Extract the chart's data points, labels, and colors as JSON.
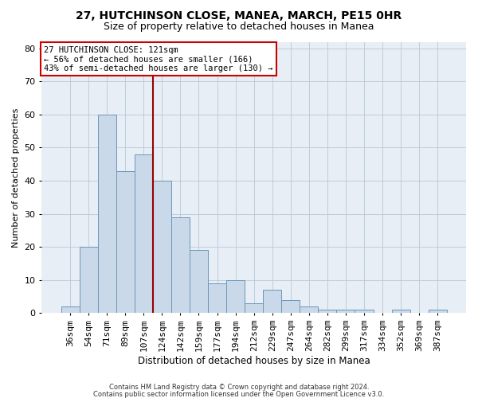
{
  "title1": "27, HUTCHINSON CLOSE, MANEA, MARCH, PE15 0HR",
  "title2": "Size of property relative to detached houses in Manea",
  "xlabel": "Distribution of detached houses by size in Manea",
  "ylabel": "Number of detached properties",
  "bar_labels": [
    "36sqm",
    "54sqm",
    "71sqm",
    "89sqm",
    "107sqm",
    "124sqm",
    "142sqm",
    "159sqm",
    "177sqm",
    "194sqm",
    "212sqm",
    "229sqm",
    "247sqm",
    "264sqm",
    "282sqm",
    "299sqm",
    "317sqm",
    "334sqm",
    "352sqm",
    "369sqm",
    "387sqm"
  ],
  "bar_heights": [
    2,
    20,
    60,
    43,
    48,
    40,
    29,
    19,
    9,
    10,
    3,
    7,
    4,
    2,
    1,
    1,
    1,
    0,
    1,
    0,
    1
  ],
  "bar_color": "#c9d9ea",
  "bar_edge_color": "#6b96b8",
  "ylim_max": 82,
  "yticks": [
    0,
    10,
    20,
    30,
    40,
    50,
    60,
    70,
    80
  ],
  "vline_index": 4,
  "vline_color": "#990000",
  "ann_line1": "27 HUTCHINSON CLOSE: 121sqm",
  "ann_line2": "← 56% of detached houses are smaller (166)",
  "ann_line3": "43% of semi-detached houses are larger (130) →",
  "ann_box_fc": "white",
  "ann_box_ec": "#cc0000",
  "footer1": "Contains HM Land Registry data © Crown copyright and database right 2024.",
  "footer2": "Contains public sector information licensed under the Open Government Licence v3.0.",
  "bg_color": "#e8eef5",
  "grid_color": "#b8c8d8",
  "title1_fontsize": 10,
  "title2_fontsize": 9
}
